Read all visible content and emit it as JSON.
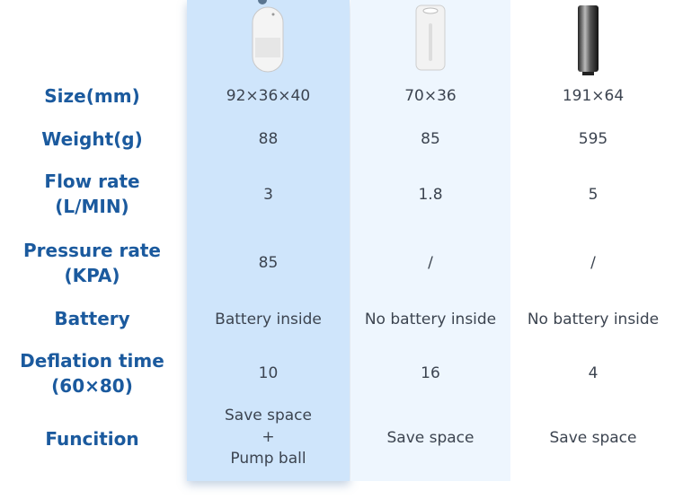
{
  "labels": [
    "Size(mm)",
    "Weight(g)",
    "Flow rate",
    "(L/MIN)",
    "Pressure rate",
    "(KPA)",
    "Battery",
    "Deflation time",
    "(60×80)",
    "Funcition"
  ],
  "products": [
    {
      "image": "white-oval-pump",
      "size": "92×36×40",
      "weight": "88",
      "flow": "3",
      "pressure": "85",
      "battery": "Battery inside",
      "deflation": "10",
      "function": [
        "Save space",
        "+",
        "Pump ball"
      ],
      "highlight": "#cfe5fb"
    },
    {
      "image": "white-cylinder-pump",
      "size": "70×36",
      "weight": "85",
      "flow": "1.8",
      "pressure": "/",
      "battery": "No battery inside",
      "deflation": "16",
      "function": [
        "Save space"
      ]
    },
    {
      "image": "steel-cylinder-pump",
      "size": "191×64",
      "weight": "595",
      "flow": "5",
      "pressure": "/",
      "battery": "No battery inside",
      "deflation": "4",
      "function": [
        "Save space"
      ]
    }
  ],
  "colors": {
    "label": "#1b5a9e",
    "highlight": "#cfe5fb",
    "column2": "#eef6fe"
  }
}
